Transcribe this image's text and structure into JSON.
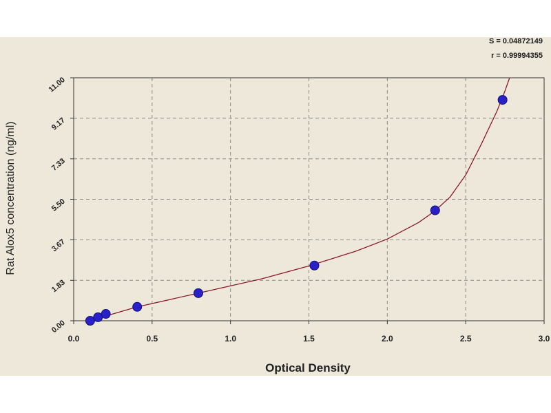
{
  "chart_data": {
    "type": "scatter",
    "title": "",
    "xlabel": "Optical Density",
    "ylabel": "Rat Alox5 concentration (ng/ml)",
    "xlim": [
      0.0,
      3.0
    ],
    "ylim": [
      0.0,
      11.0
    ],
    "x_ticks": [
      "0.0",
      "0.5",
      "1.0",
      "1.5",
      "2.0",
      "2.5",
      "3.0"
    ],
    "y_ticks": [
      "0.00",
      "1.83",
      "3.67",
      "5.50",
      "7.33",
      "9.17",
      "11.00"
    ],
    "grid": true,
    "stats": {
      "s": "S = 0.04872149",
      "r": "r = 0.99994355"
    },
    "points": {
      "x": [
        0.105,
        0.155,
        0.205,
        0.405,
        0.795,
        1.535,
        2.305,
        2.735
      ],
      "y": [
        0.0,
        0.16,
        0.31,
        0.63,
        1.25,
        2.5,
        5.0,
        10.0
      ]
    },
    "fit_curve": {
      "x": [
        0.1,
        0.4,
        0.8,
        1.2,
        1.5,
        1.8,
        2.0,
        2.2,
        2.3,
        2.4,
        2.5,
        2.6,
        2.7,
        2.75,
        2.78
      ],
      "y": [
        0.0,
        0.62,
        1.26,
        1.9,
        2.48,
        3.15,
        3.7,
        4.45,
        4.95,
        5.6,
        6.6,
        8.0,
        9.5,
        10.4,
        11.0
      ]
    },
    "colors": {
      "point": "#2a20c8",
      "point_edge": "#10107a",
      "curve": "#8b1a2a",
      "grid": "#8a8a8a",
      "background": "#ede8da"
    }
  }
}
